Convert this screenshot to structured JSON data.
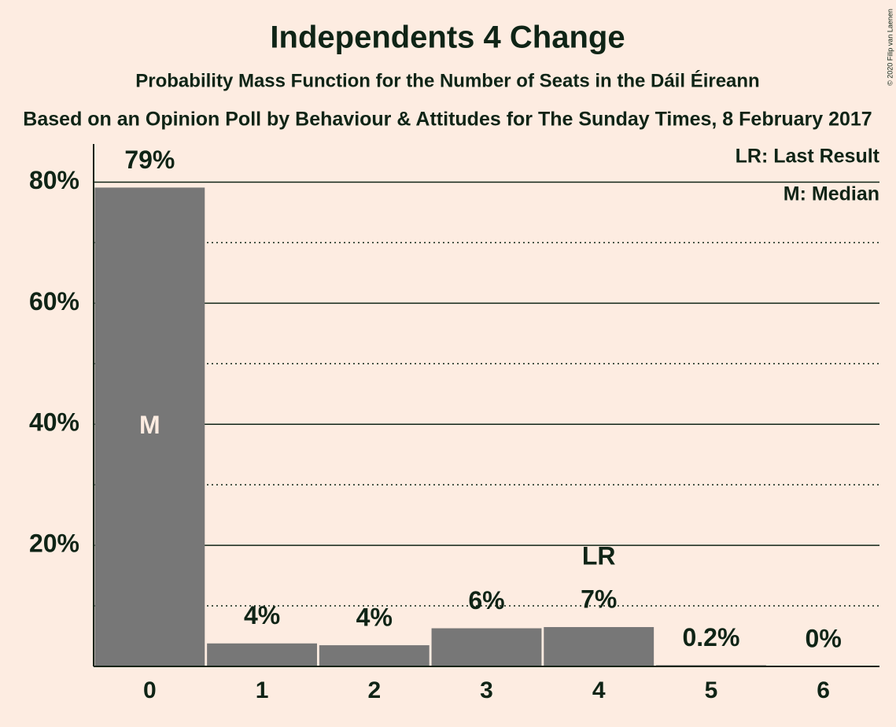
{
  "chart_data": {
    "type": "bar",
    "title": "Independents 4 Change",
    "subtitle": "Probability Mass Function for the Number of Seats in the Dáil Éireann",
    "caption": "Based on an Opinion Poll by Behaviour & Attitudes for The Sunday Times, 8 February 2017",
    "copyright": "© 2020 Filip van Laenen",
    "categories": [
      "0",
      "1",
      "2",
      "3",
      "4",
      "5",
      "6"
    ],
    "values": [
      79.1,
      3.8,
      3.5,
      6.3,
      6.5,
      0.2,
      0
    ],
    "value_labels": [
      "79%",
      "4%",
      "4%",
      "6%",
      "7%",
      "0.2%",
      "0%"
    ],
    "color": "#777777",
    "ylim": [
      0,
      86.3
    ],
    "yticks": [
      {
        "value": 20,
        "label": "20%"
      },
      {
        "value": 40,
        "label": "40%"
      },
      {
        "value": 60,
        "label": "60%"
      },
      {
        "value": 80,
        "label": "80%"
      }
    ],
    "minor_yticks": [
      10,
      30,
      50,
      70
    ],
    "grid": true,
    "annotations": [
      {
        "category": "0",
        "text": "M"
      },
      {
        "category": "4",
        "text": "LR"
      }
    ],
    "legend": [
      "LR: Last Result",
      "M: Median"
    ],
    "legend_position": "top-right"
  }
}
